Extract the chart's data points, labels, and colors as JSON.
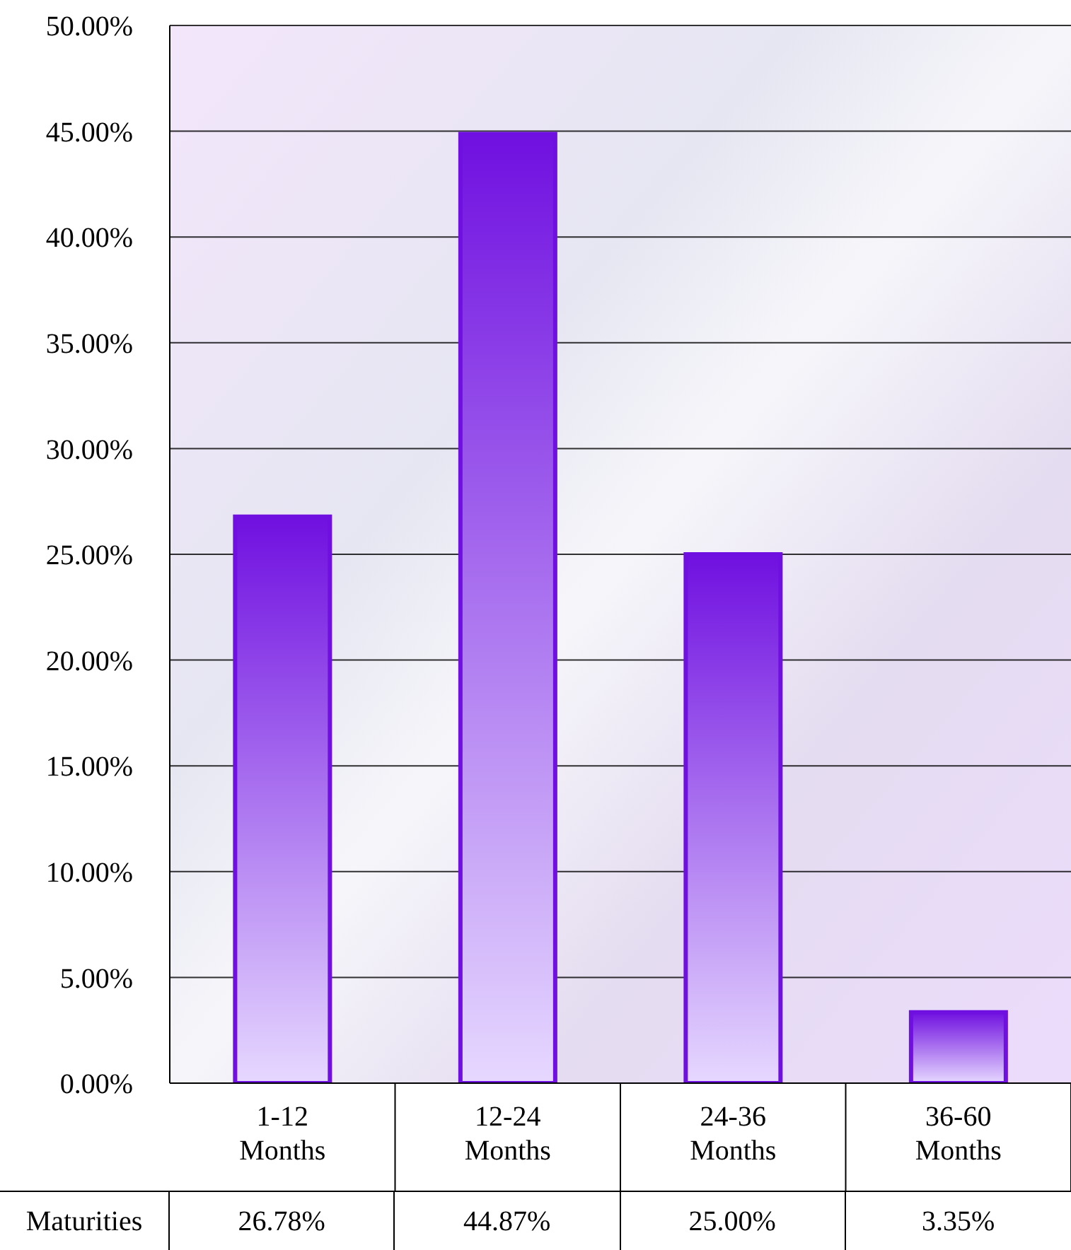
{
  "chart_data": {
    "type": "bar",
    "categories": [
      "1-12 Months",
      "12-24 Months",
      "24-36 Months",
      "36-60 Months"
    ],
    "series": [
      {
        "name": "Maturities",
        "color": "#7010e0",
        "values": [
          26.78,
          44.87,
          25.0,
          3.35
        ],
        "value_labels": [
          "26.78%",
          "44.87%",
          "25.00%",
          "3.35%"
        ]
      }
    ],
    "ylim": [
      0,
      50
    ],
    "yticks": [
      {
        "value": 0,
        "label": "0.00%"
      },
      {
        "value": 5,
        "label": "5.00%"
      },
      {
        "value": 10,
        "label": "10.00%"
      },
      {
        "value": 15,
        "label": "15.00%"
      },
      {
        "value": 20,
        "label": "20.00%"
      },
      {
        "value": 25,
        "label": "25.00%"
      },
      {
        "value": 30,
        "label": "30.00%"
      },
      {
        "value": 35,
        "label": "35.00%"
      },
      {
        "value": 40,
        "label": "40.00%"
      },
      {
        "value": 45,
        "label": "45.00%"
      },
      {
        "value": 50,
        "label": "50.00%"
      }
    ],
    "grid": "y"
  }
}
